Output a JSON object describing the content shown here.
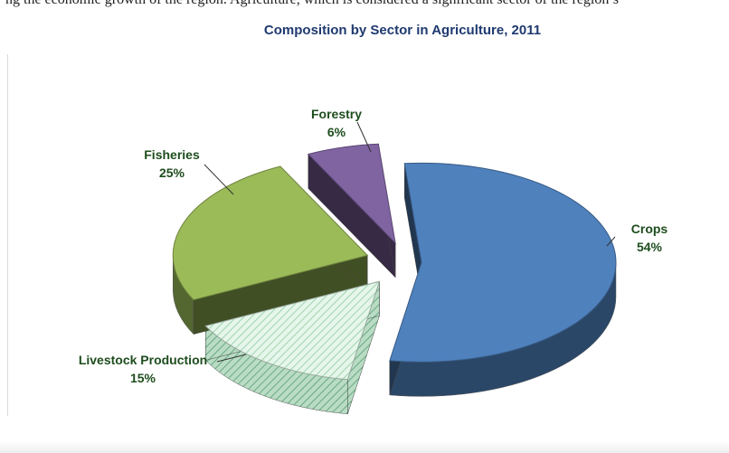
{
  "header_fragment": "ng the economic growth of the region. Agriculture, which is considered a significant sector of the region’s",
  "chart_data": {
    "type": "pie",
    "title": "Composition by Sector in Agriculture, 2011",
    "slices": [
      {
        "name": "Crops",
        "value": 54,
        "label": "54%",
        "color": "#4f81bd",
        "exploded": false
      },
      {
        "name": "Livestock Production",
        "value": 15,
        "label": "15%",
        "color": "#d8f0e0",
        "exploded": true,
        "pattern": "diagonal-hatch"
      },
      {
        "name": "Fisheries",
        "value": 25,
        "label": "25%",
        "color": "#9bbb59",
        "exploded": true
      },
      {
        "name": "Forestry",
        "value": 6,
        "label": "6%",
        "color": "#8064a2",
        "exploded": true
      }
    ],
    "label_color": "#1e4d1e",
    "style": "3d-exploded"
  }
}
